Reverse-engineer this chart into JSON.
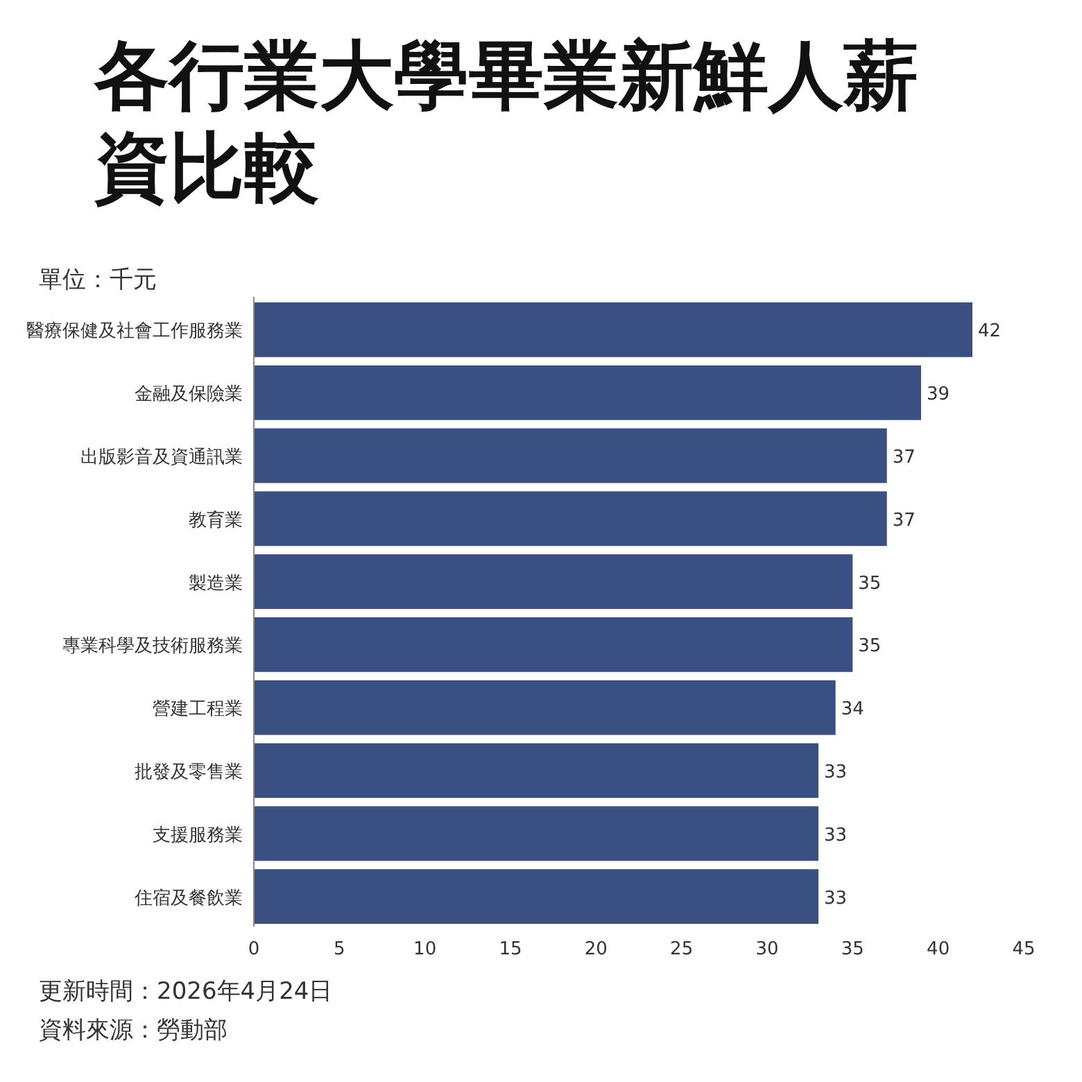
{
  "chart_data": {
    "type": "bar",
    "orientation": "horizontal",
    "title": "各行業大學畢業新鮮人薪資比較",
    "categories": [
      "醫療保健及社會工作服務業",
      "金融及保險業",
      "出版影音及資通訊業",
      "教育業",
      "製造業",
      "專業科學及技術服務業",
      "營建工程業",
      "批發及零售業",
      "支援服務業",
      "住宿及餐飲業"
    ],
    "values": [
      42,
      39,
      37,
      37,
      35,
      35,
      34,
      33,
      33,
      33
    ],
    "color": "#3a5083",
    "xlim": [
      0,
      45
    ],
    "xticks": [
      0,
      5,
      10,
      15,
      20,
      25,
      30,
      35,
      40,
      45
    ],
    "data_labels": true,
    "annotations": [
      "單位：千元",
      "更新時間：2026年4月24日",
      "資料來源：勞動部"
    ]
  }
}
